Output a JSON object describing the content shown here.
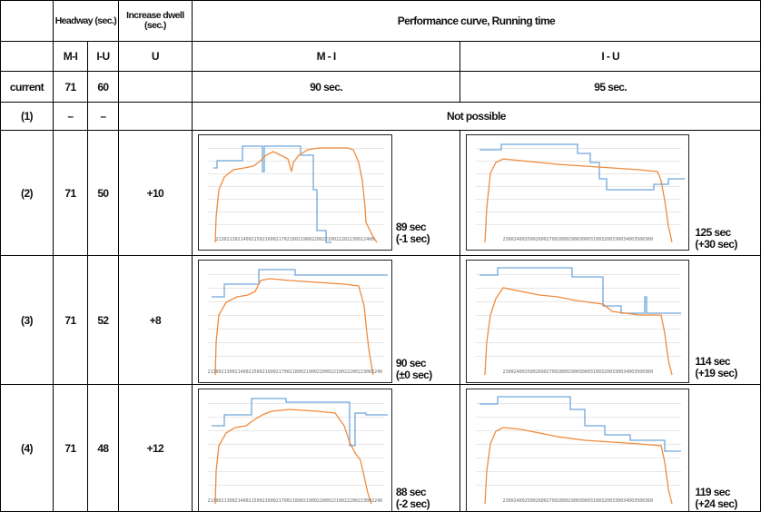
{
  "header": {
    "headway": "Headway (sec.)",
    "increase_dwell": "Increase dwell (sec.)",
    "performance": "Performance curve, Running time",
    "headway_mi": "M-I",
    "headway_iu": "I-U",
    "dwell_station": "U",
    "curve_mi": "M - I",
    "curve_iu": "I - U"
  },
  "rows": [
    {
      "label": "current",
      "mi": "71",
      "iu": "60",
      "dwell": "",
      "curve_mi": "90 sec.",
      "curve_iu": "95 sec."
    },
    {
      "label": "(1)",
      "mi": "–",
      "iu": "–",
      "dwell": "",
      "merged": "Not possible"
    }
  ],
  "scenarios": [
    {
      "label": "(2)",
      "mi": "71",
      "iu": "50",
      "dwell": "+10",
      "mi_result": {
        "time": "89 sec",
        "diff": "(-1 sec)"
      },
      "iu_result": {
        "time": "125 sec",
        "diff": "(+30 sec)"
      },
      "mi_ticks": "2130213021400215021600217021802190022002210022202230022400",
      "iu_ticks": "2300240025002600270028002900300031003200330034003500360"
    },
    {
      "label": "(3)",
      "mi": "71",
      "iu": "52",
      "dwell": "+8",
      "mi_result": {
        "time": "90 sec",
        "diff": "(±0 sec)"
      },
      "iu_result": {
        "time": "114 sec",
        "diff": "(+19 sec)"
      },
      "mi_ticks": "2130021300214002150021600217002180021900220002210022200223002240",
      "iu_ticks": "2300240025002600270028002900300031003200330034003500360"
    },
    {
      "label": "(4)",
      "mi": "71",
      "iu": "48",
      "dwell": "+12",
      "mi_result": {
        "time": "88 sec",
        "diff": "(-2 sec)"
      },
      "iu_result": {
        "time": "119 sec",
        "diff": "(+24 sec)"
      },
      "mi_ticks": "2130021300214002150021600217002180021900220002210022200223002240",
      "iu_ticks": "2300240025002600270028002900300031003200330034003500360"
    }
  ],
  "colors": {
    "speed_curve": "#f08a3c",
    "speed_limit": "#6fa8dc",
    "grid": "#d0d0d0"
  }
}
